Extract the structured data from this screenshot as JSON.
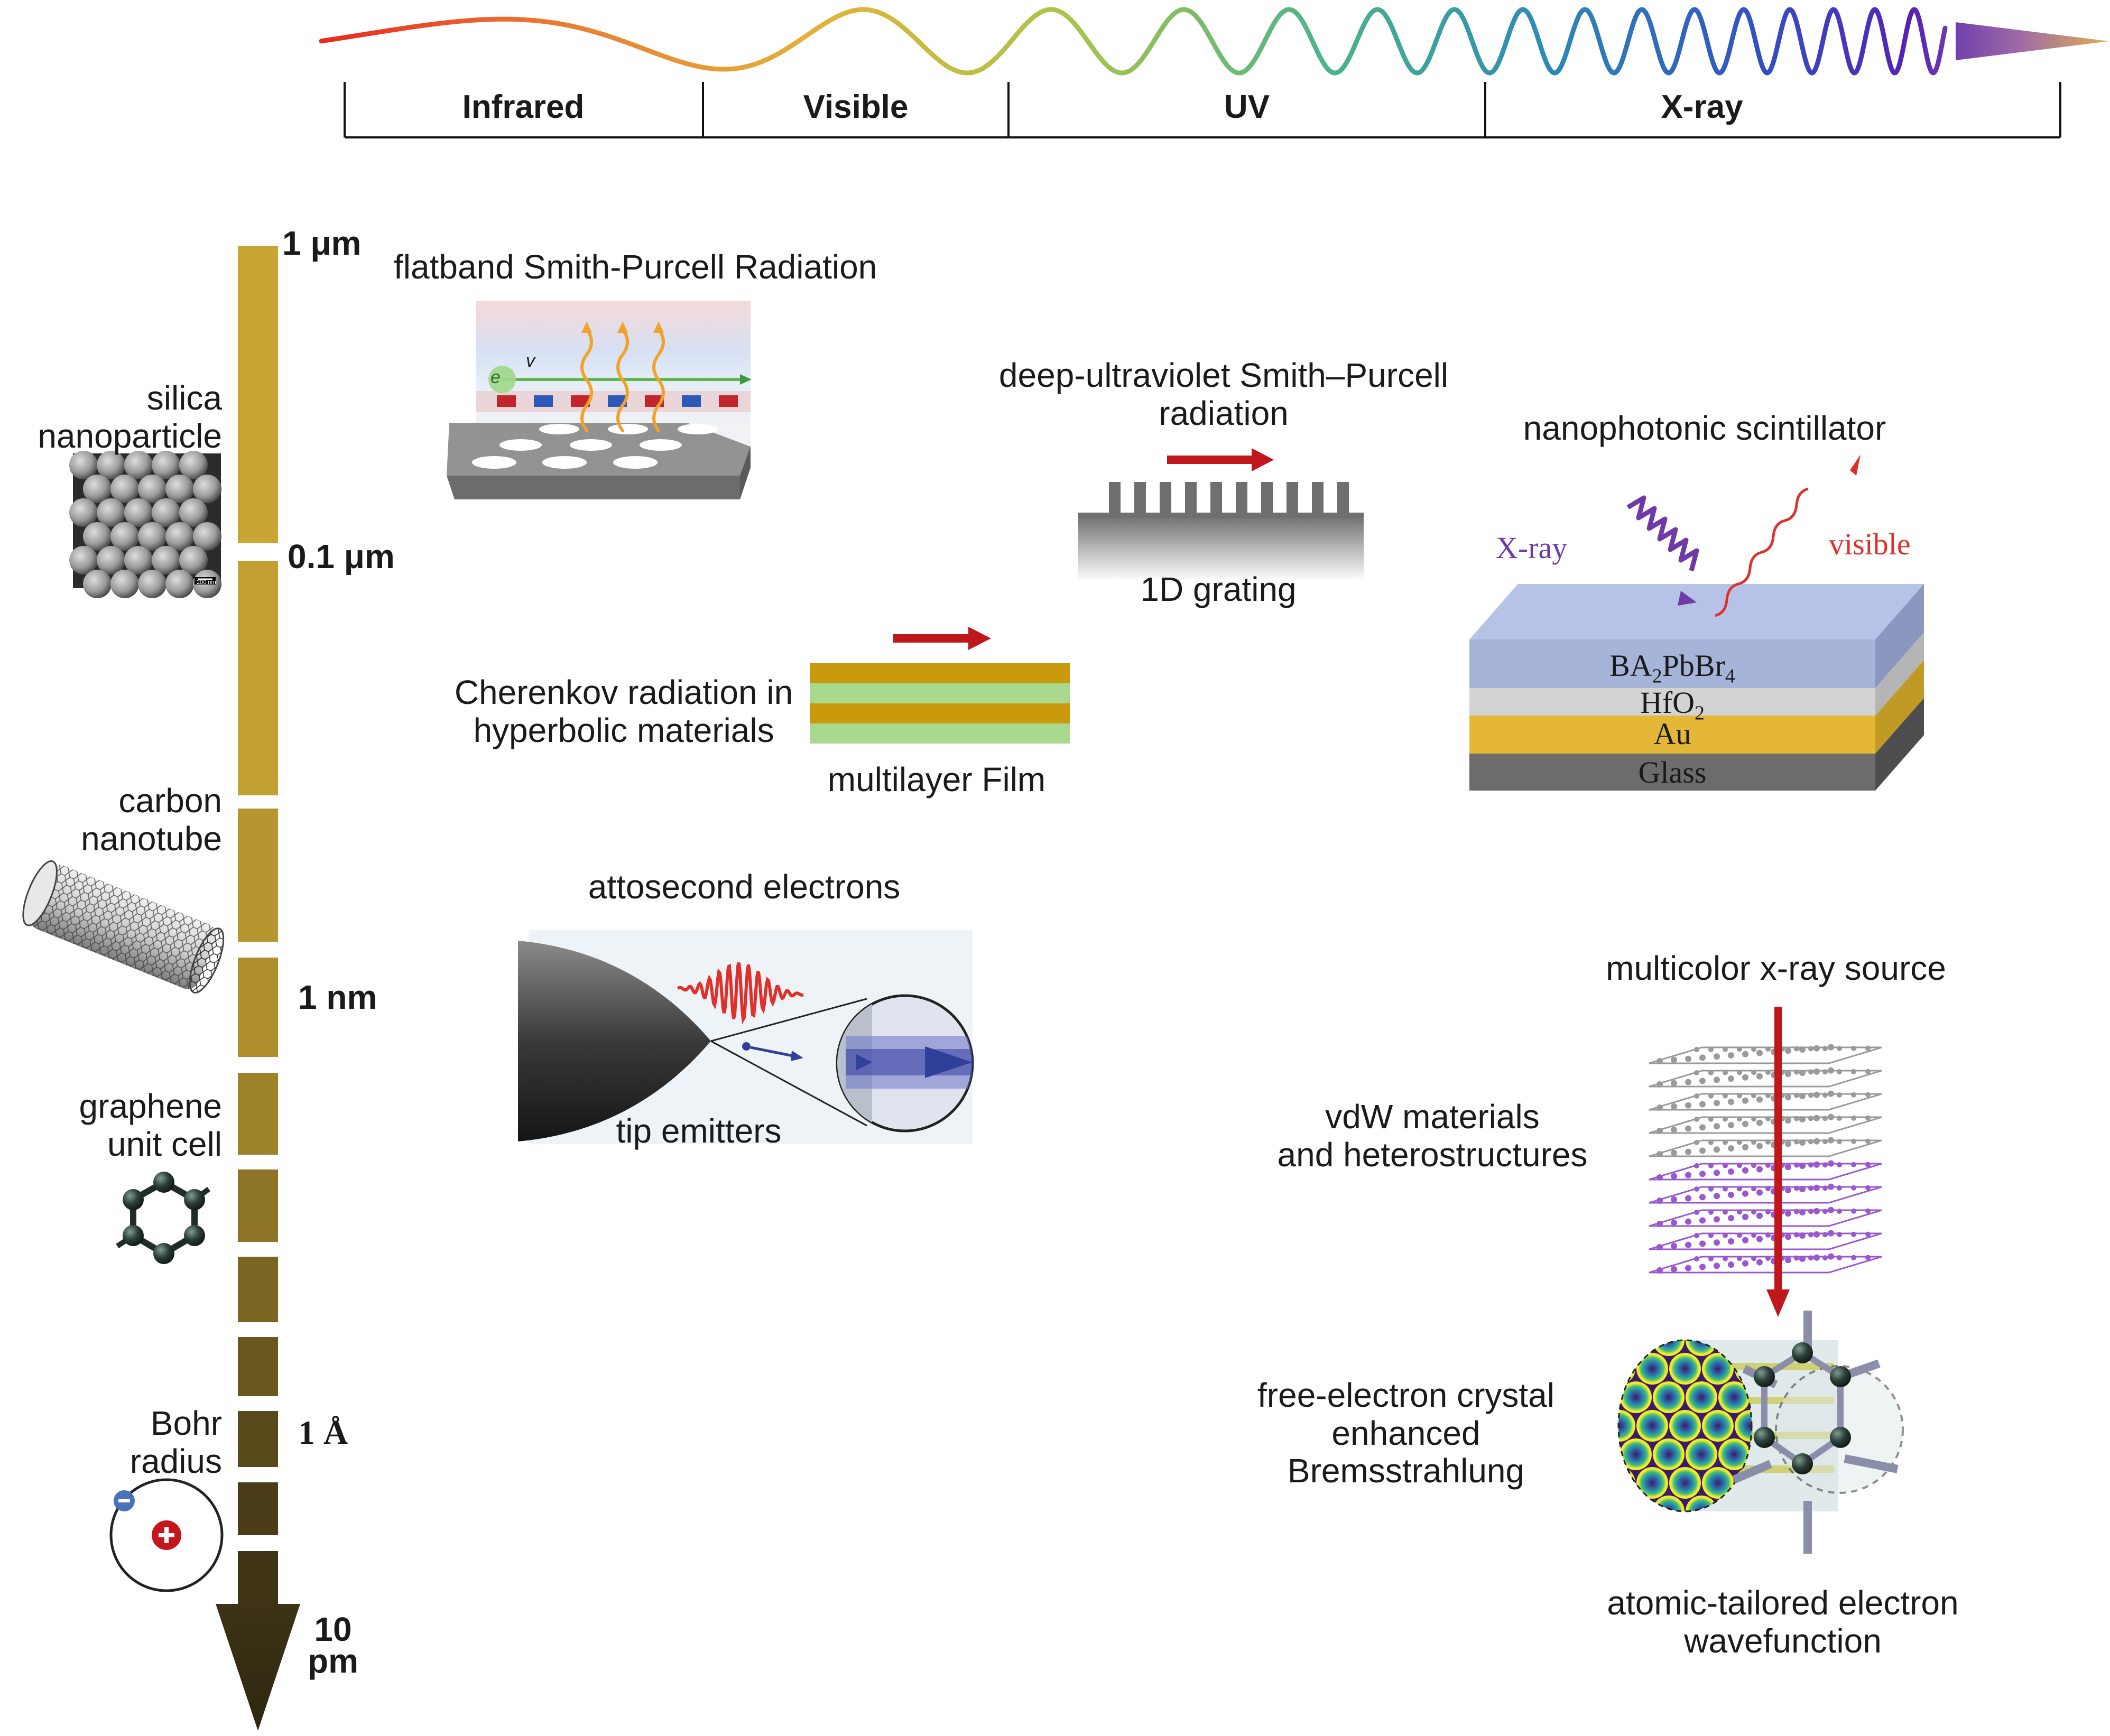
{
  "spectrum": {
    "bands": [
      "Infrared",
      "Visible",
      "UV",
      "X-ray"
    ]
  },
  "scale": {
    "labels": [
      "1 μm",
      "0.1 μm",
      "1 nm",
      "1 Å",
      "10",
      "pm"
    ]
  },
  "examples": {
    "silica": [
      "silica",
      "nanoparticle"
    ],
    "silica_scalebar": "200 nm",
    "nanotube": [
      "carbon",
      "nanotube"
    ],
    "graphene": [
      "graphene",
      "unit cell"
    ],
    "bohr": [
      "Bohr",
      "radius"
    ]
  },
  "panels": {
    "smith_purcell_title": "flatband Smith-Purcell Radiation",
    "electron_label": "e",
    "velocity_label": "v",
    "duv_title": [
      "deep-ultraviolet Smith–Purcell",
      "radiation"
    ],
    "grating_label": "1D grating",
    "scintillator_title": "nanophotonic scintillator",
    "xray_label": "X-ray",
    "visible_label": "visible",
    "layers": [
      "BA",
      "2",
      "PbBr",
      "4",
      "HfO",
      "2",
      "Au",
      "Glass"
    ],
    "cherenkov": [
      "Cherenkov radiation in",
      "hyperbolic materials"
    ],
    "multilayer_label": "multilayer Film",
    "atto_title": "attosecond electrons",
    "tip_label": "tip emitters",
    "multicolor_title": "multicolor x-ray source",
    "vdw": [
      "vdW materials",
      "and heterostructures"
    ],
    "fec": [
      "free-electron crystal",
      "enhanced",
      "Bremsstrahlung"
    ],
    "atomic": [
      "atomic-tailored electron",
      "wavefunction"
    ]
  },
  "colors": {
    "ruler_top": "#c9a635",
    "ruler_bottom": "#3d3316",
    "arrow_red": "#c0171c",
    "layer_perovskite": "#a6b4da",
    "layer_hfo2": "#cfcfcf",
    "layer_au": "#e4b836",
    "layer_glass": "#6c6c6c",
    "film_gold": "#c99a0b",
    "film_green": "#a9d98c",
    "vdw_gray": "#9a9a9a",
    "vdw_purple": "#9a58d0"
  }
}
